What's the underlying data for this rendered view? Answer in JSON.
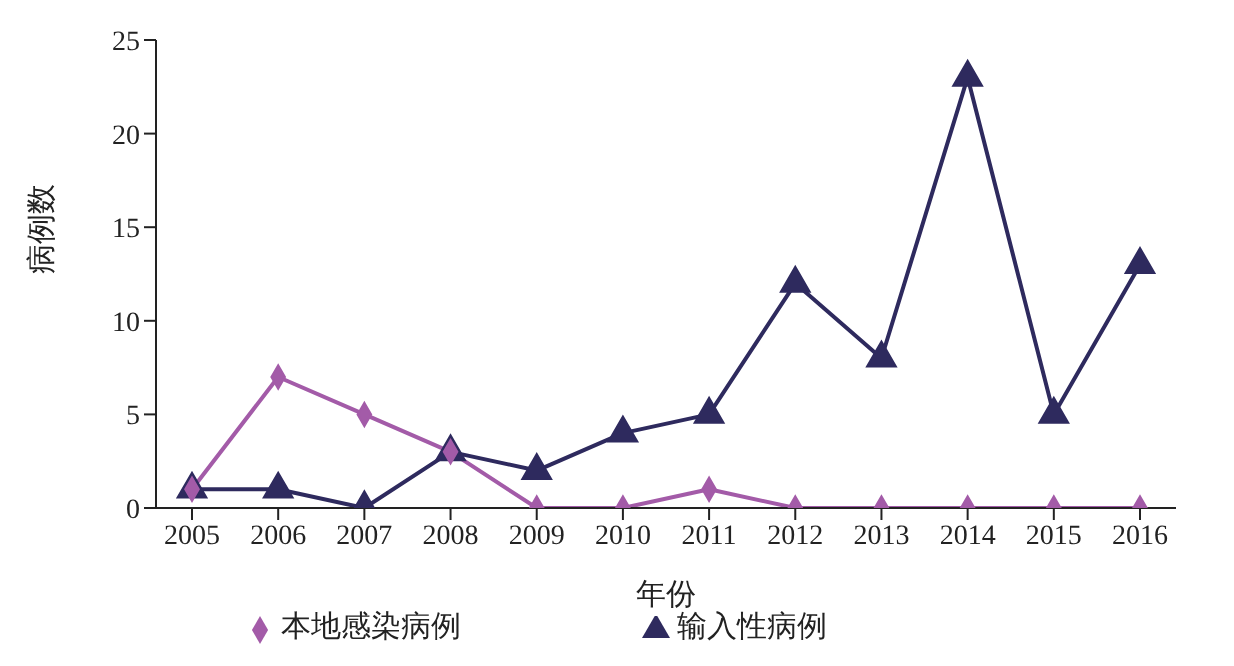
{
  "chart_data": {
    "type": "line",
    "xlabel": "年份",
    "ylabel": "病例数",
    "categories": [
      "2005",
      "2006",
      "2007",
      "2008",
      "2009",
      "2010",
      "2011",
      "2012",
      "2013",
      "2014",
      "2015",
      "2016"
    ],
    "series": [
      {
        "name": "本地感染病例",
        "color": "#a35ba8",
        "marker": "diamond",
        "values": [
          1,
          7,
          5,
          3,
          0,
          0,
          1,
          0,
          0,
          0,
          0,
          0
        ]
      },
      {
        "name": "输入性病例",
        "color": "#2e2a5e",
        "marker": "triangle",
        "values": [
          1,
          1,
          0,
          3,
          2,
          4,
          5,
          12,
          8,
          23,
          5,
          13
        ]
      }
    ],
    "ylim": [
      0,
      25
    ],
    "yticks": [
      0,
      5,
      10,
      15,
      20,
      25
    ],
    "grid": false,
    "legend": "bottom",
    "line_style": "solid"
  }
}
